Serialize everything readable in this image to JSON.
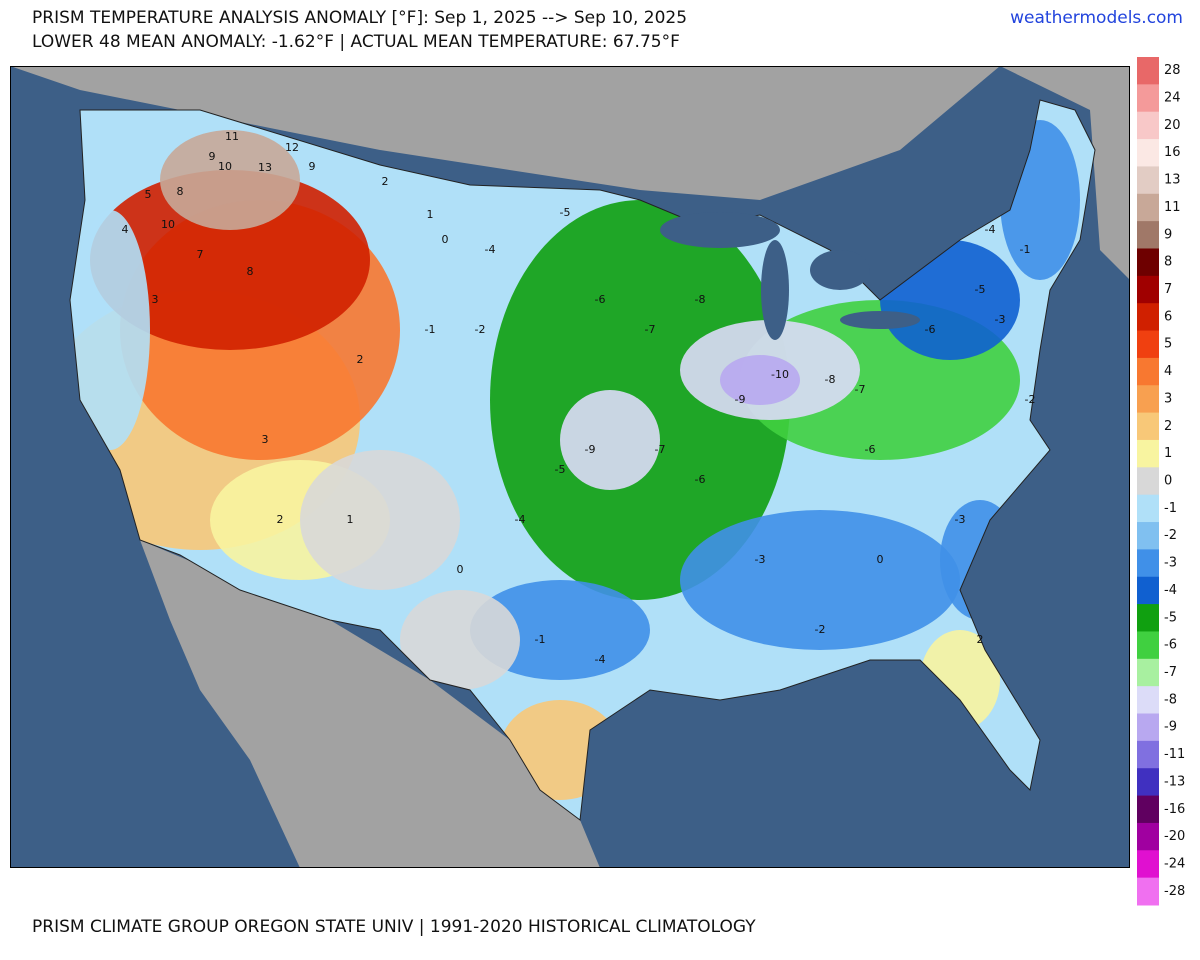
{
  "header": {
    "title": "PRISM TEMPERATURE ANALYSIS ANOMALY [°F]: Sep 1, 2025 --> Sep 10, 2025",
    "subtitle": "LOWER 48 MEAN ANOMALY: -1.62°F | ACTUAL MEAN TEMPERATURE: 67.75°F",
    "site": "weathermodels.com"
  },
  "footer": "PRISM CLIMATE GROUP OREGON STATE UNIV | 1991-2020 HISTORICAL CLIMATOLOGY",
  "colorbar": {
    "ticks": [
      28,
      24,
      20,
      16,
      13,
      11,
      9,
      8,
      7,
      6,
      5,
      4,
      3,
      2,
      1,
      0,
      -1,
      -2,
      -3,
      -4,
      -5,
      -6,
      -7,
      -8,
      -9,
      -11,
      -13,
      -16,
      -20,
      -24,
      -28
    ],
    "colors": [
      "#e86868",
      "#f49a9a",
      "#f8c8c8",
      "#fbe8e4",
      "#e2ccc4",
      "#c8a898",
      "#a07868",
      "#6e0000",
      "#a00000",
      "#d02000",
      "#f04010",
      "#f87830",
      "#f8a050",
      "#f8c878",
      "#f8f4a0",
      "#d8d8d8",
      "#b0e0f8",
      "#80c0f0",
      "#4090e8",
      "#1060d0",
      "#10a010",
      "#40d040",
      "#a8f0a0",
      "#dcdcf8",
      "#b8a8f0",
      "#8070e0",
      "#4030c0",
      "#600060",
      "#a000a0",
      "#e010d0",
      "#f070f0"
    ]
  },
  "map_labels": [
    11,
    9,
    10,
    13,
    12,
    9,
    8,
    10,
    7,
    8,
    5,
    4,
    3,
    2,
    1,
    0,
    -1,
    2,
    3,
    -2,
    -4,
    -5,
    -6,
    -7,
    -8,
    -9,
    -10,
    -8,
    -7,
    -6,
    -5,
    -4,
    -3,
    -2,
    -1,
    0,
    2,
    -4,
    -5,
    -6,
    -3,
    -2,
    -3,
    -4,
    -1,
    0,
    2,
    1,
    -6,
    -9,
    -7
  ]
}
